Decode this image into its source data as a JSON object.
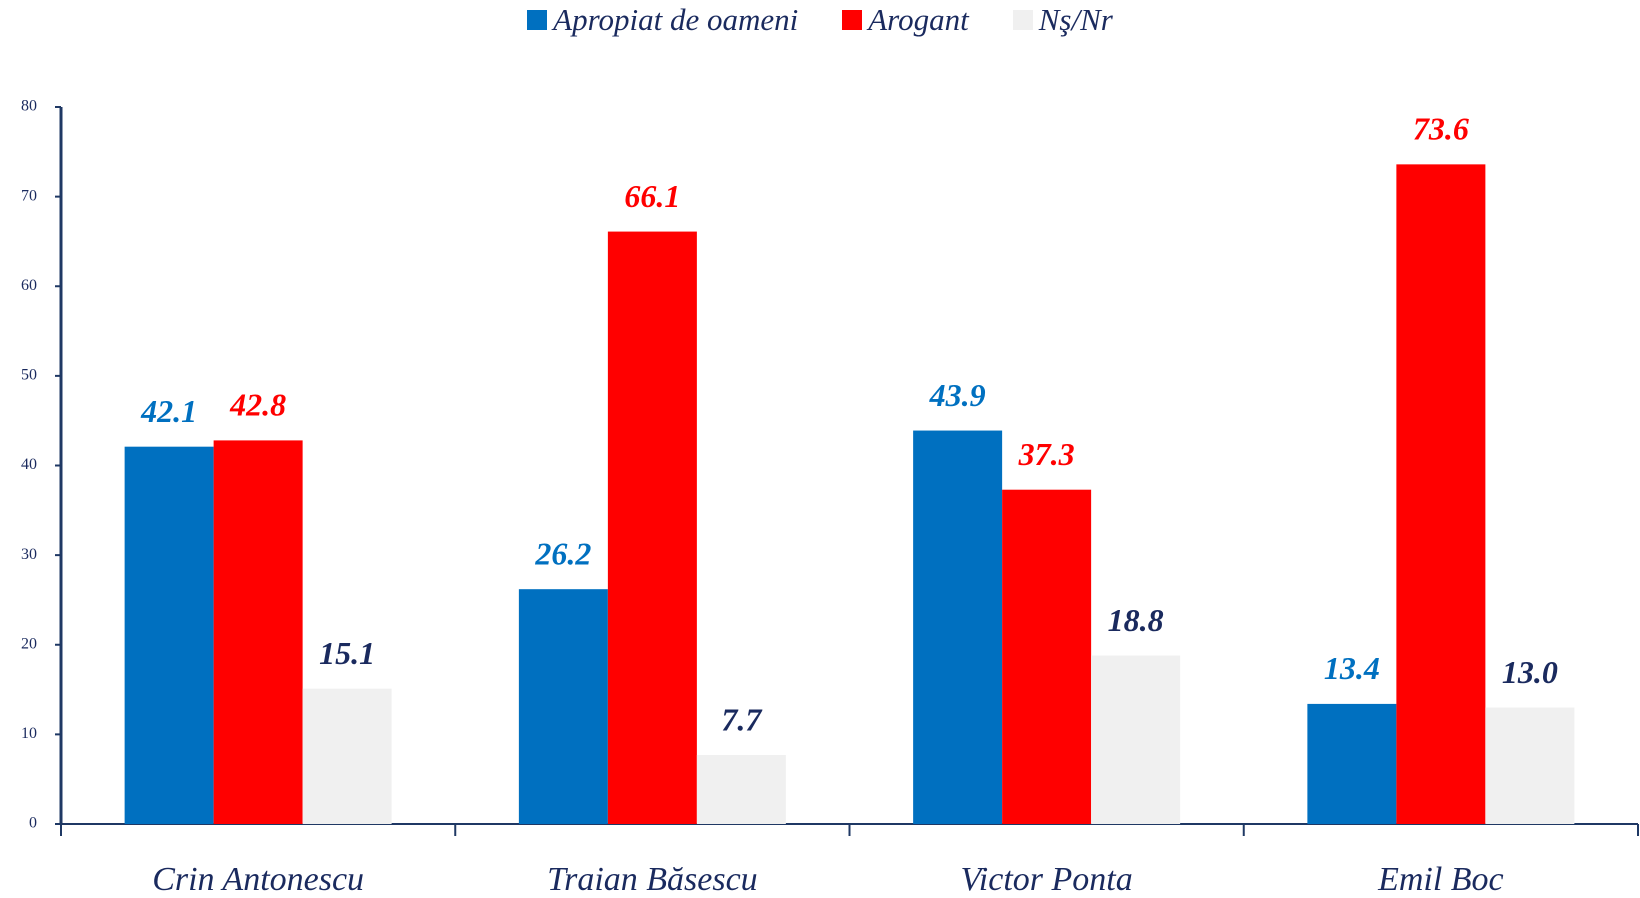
{
  "chart_data": {
    "type": "bar",
    "categories": [
      "Crin Antonescu",
      "Traian Băsescu",
      "Victor Ponta",
      "Emil Boc"
    ],
    "series": [
      {
        "name": "Apropiat de oameni",
        "color": "#0070c0",
        "label_color": "#0070c0",
        "values": [
          42.1,
          26.2,
          43.9,
          13.4
        ],
        "value_labels": [
          "42.1",
          "26.2",
          "43.9",
          "13.4"
        ]
      },
      {
        "name": "Arogant",
        "color": "#ff0000",
        "label_color": "#ff0000",
        "values": [
          42.8,
          66.1,
          37.3,
          73.6
        ],
        "value_labels": [
          "42.8",
          "66.1",
          "37.3",
          "73.6"
        ]
      },
      {
        "name": "Nş/Nr",
        "color": "#f0f0f0",
        "label_color": "#1a2a5e",
        "values": [
          15.1,
          7.7,
          18.8,
          13.0
        ],
        "value_labels": [
          "15.1",
          "7.7",
          "18.8",
          "13.0"
        ]
      }
    ],
    "ylim": [
      0,
      80
    ],
    "yticks": [
      0,
      10,
      20,
      30,
      40,
      50,
      60,
      70,
      80
    ],
    "grid": false,
    "legend": "top"
  }
}
